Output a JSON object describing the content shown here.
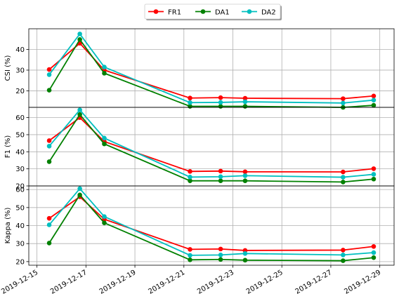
{
  "chart_data": {
    "type": "line",
    "legend": {
      "placement": "top-center",
      "entries": [
        "FR1",
        "DA1",
        "DA2"
      ]
    },
    "series_colors": {
      "FR1": "#ff0000",
      "DA1": "#008000",
      "DA2": "#00bfbf"
    },
    "x": [
      "2019-12-15 12:00",
      "2019-12-16 18:00",
      "2019-12-17 18:00",
      "2019-12-21 06:00",
      "2019-12-22 12:00",
      "2019-12-23 12:00",
      "2019-12-27 12:00",
      "2019-12-28 18:00"
    ],
    "x_tick_labels": [
      "2019-12-15",
      "2019-12-17",
      "2019-12-19",
      "2019-12-21",
      "2019-12-23",
      "2019-12-25",
      "2019-12-27",
      "2019-12-29"
    ],
    "xlim": [
      "2019-12-14 16:00",
      "2019-12-29 14:00"
    ],
    "grid": true,
    "panels": [
      {
        "ylabel": "CSI (%)",
        "ylim": [
          12,
          50
        ],
        "yticks": [
          20,
          30,
          40
        ],
        "series": [
          {
            "name": "FR1",
            "values": [
              30.3,
              43.0,
              30.0,
              16.5,
              16.7,
              16.4,
              16.2,
              17.5
            ]
          },
          {
            "name": "DA1",
            "values": [
              20.3,
              44.8,
              28.5,
              12.5,
              12.5,
              12.5,
              12.0,
              13.0
            ]
          },
          {
            "name": "DA2",
            "values": [
              27.8,
              47.5,
              31.5,
              14.3,
              14.4,
              14.7,
              14.1,
              15.5
            ]
          }
        ]
      },
      {
        "ylabel": "F1 (%)",
        "ylim": [
          20,
          66
        ],
        "yticks": [
          20,
          30,
          40,
          50,
          60
        ],
        "series": [
          {
            "name": "FR1",
            "values": [
              46.5,
              60.0,
              46.0,
              28.5,
              28.7,
              28.3,
              28.2,
              30.1
            ]
          },
          {
            "name": "DA1",
            "values": [
              34.2,
              61.8,
              44.6,
              23.0,
              23.0,
              23.0,
              22.3,
              24.0
            ]
          },
          {
            "name": "DA2",
            "values": [
              43.3,
              64.5,
              48.0,
              25.2,
              25.4,
              26.0,
              25.1,
              26.8
            ]
          }
        ]
      },
      {
        "ylabel": "Kappa (%)",
        "ylim": [
          18,
          62
        ],
        "yticks": [
          20,
          30,
          40,
          50,
          60
        ],
        "series": [
          {
            "name": "FR1",
            "values": [
              44.0,
              56.0,
              43.5,
              26.8,
              27.0,
              26.2,
              26.4,
              28.4
            ]
          },
          {
            "name": "DA1",
            "values": [
              30.3,
              57.0,
              41.5,
              21.0,
              21.2,
              20.8,
              20.5,
              22.2
            ]
          },
          {
            "name": "DA2",
            "values": [
              40.4,
              60.5,
              45.0,
              23.5,
              23.7,
              24.5,
              23.7,
              25.0
            ]
          }
        ]
      }
    ]
  }
}
